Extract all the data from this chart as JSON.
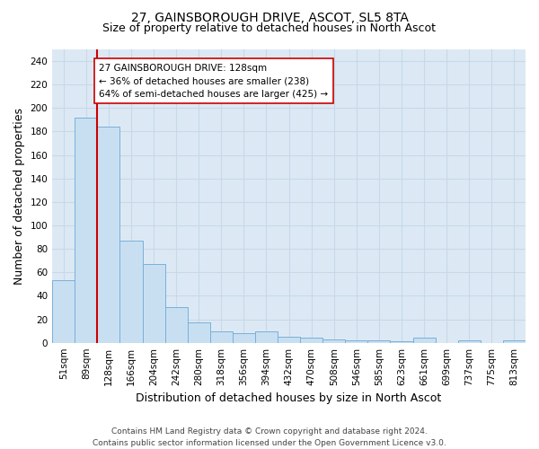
{
  "title": "27, GAINSBOROUGH DRIVE, ASCOT, SL5 8TA",
  "subtitle": "Size of property relative to detached houses in North Ascot",
  "xlabel": "Distribution of detached houses by size in North Ascot",
  "ylabel": "Number of detached properties",
  "bar_labels": [
    "51sqm",
    "89sqm",
    "128sqm",
    "166sqm",
    "204sqm",
    "242sqm",
    "280sqm",
    "318sqm",
    "356sqm",
    "394sqm",
    "432sqm",
    "470sqm",
    "508sqm",
    "546sqm",
    "585sqm",
    "623sqm",
    "661sqm",
    "699sqm",
    "737sqm",
    "775sqm",
    "813sqm"
  ],
  "bar_values": [
    53,
    192,
    184,
    87,
    67,
    30,
    17,
    10,
    8,
    10,
    5,
    4,
    3,
    2,
    2,
    1,
    4,
    0,
    2,
    0,
    2
  ],
  "bar_color": "#c8dff2",
  "bar_edge_color": "#7ab0d8",
  "highlight_index": 2,
  "highlight_line_color": "#cc0000",
  "annotation_text": "27 GAINSBOROUGH DRIVE: 128sqm\n← 36% of detached houses are smaller (238)\n64% of semi-detached houses are larger (425) →",
  "annotation_box_color": "#ffffff",
  "annotation_box_edge_color": "#cc0000",
  "ylim": [
    0,
    250
  ],
  "yticks": [
    0,
    20,
    40,
    60,
    80,
    100,
    120,
    140,
    160,
    180,
    200,
    220,
    240
  ],
  "footer_line1": "Contains HM Land Registry data © Crown copyright and database right 2024.",
  "footer_line2": "Contains public sector information licensed under the Open Government Licence v3.0.",
  "background_color": "#dce9f5",
  "grid_color": "#c8d8e8",
  "fig_background": "#ffffff",
  "title_fontsize": 10,
  "subtitle_fontsize": 9,
  "axis_label_fontsize": 9,
  "tick_fontsize": 7.5,
  "annotation_fontsize": 7.5,
  "footer_fontsize": 6.5
}
